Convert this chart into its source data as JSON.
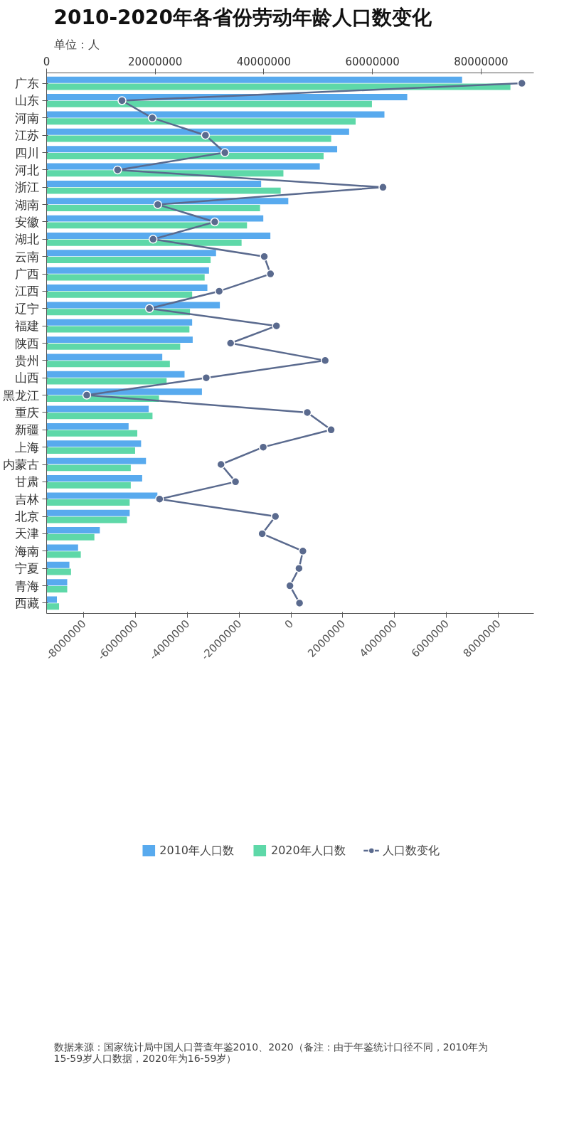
{
  "chart_data": {
    "type": "bar",
    "orientation": "horizontal",
    "title": "2010-2020年各省份劳动年龄人口数变化",
    "subtitle": "单位：人",
    "categories": [
      "广东",
      "山东",
      "河南",
      "江苏",
      "四川",
      "河北",
      "浙江",
      "湖南",
      "安徽",
      "湖北",
      "云南",
      "广西",
      "江西",
      "辽宁",
      "福建",
      "陕西",
      "贵州",
      "山西",
      "黑龙江",
      "重庆",
      "新疆",
      "上海",
      "内蒙古",
      "甘肃",
      "吉林",
      "北京",
      "天津",
      "海南",
      "宁夏",
      "青海",
      "西藏"
    ],
    "series": [
      {
        "name": "2010年人口数",
        "color": "#58aaee",
        "values": [
          76500000,
          66400000,
          62200000,
          55700000,
          53500000,
          50300000,
          39500000,
          44500000,
          39900000,
          41200000,
          31200000,
          29900000,
          29600000,
          31900000,
          26800000,
          26900000,
          21300000,
          25400000,
          28600000,
          18800000,
          15100000,
          17400000,
          18300000,
          17600000,
          20400000,
          15300000,
          9800000,
          5800000,
          4200000,
          3800000,
          1900000
        ]
      },
      {
        "name": "2020年人口数",
        "color": "#5ed8a8",
        "values": [
          85400000,
          59900000,
          56900000,
          52400000,
          51000000,
          43600000,
          43100000,
          39300000,
          36900000,
          35900000,
          30200000,
          29100000,
          26800000,
          26400000,
          26300000,
          24600000,
          22700000,
          22100000,
          20700000,
          19500000,
          16700000,
          16300000,
          15500000,
          15500000,
          15300000,
          14800000,
          8800000,
          6300000,
          4500000,
          3800000,
          2300000
        ]
      },
      {
        "name": "人口数变化",
        "type": "line",
        "axis": "x2",
        "color": "#5a6a8e",
        "marker": "circle",
        "values": [
          8910000,
          -6520000,
          -5350000,
          -3300000,
          -2550000,
          -6690000,
          3550000,
          -5140000,
          -2940000,
          -5320000,
          -1030000,
          -790000,
          -2770000,
          -5460000,
          -560000,
          -2330000,
          1320000,
          -3270000,
          -7880000,
          630000,
          1550000,
          -1070000,
          -2700000,
          -2140000,
          -5070000,
          -600000,
          -1110000,
          460000,
          310000,
          -40000,
          330000
        ]
      }
    ],
    "xlim": [
      0,
      89700000
    ],
    "xticks": [
      0,
      20000000,
      40000000,
      60000000,
      80000000
    ],
    "x2lim": [
      -9430000,
      9370000
    ],
    "x2ticks": [
      -8000000,
      -6000000,
      -4000000,
      -2000000,
      0,
      2000000,
      4000000,
      6000000,
      8000000
    ],
    "grid": false,
    "legend": "bottom",
    "annotations": [
      "数据来源：国家统计局中国人口普查年鉴2010、2020（备注：由于年鉴统计口径不同，2010年为15-59岁人口数据，2020年为16-59岁）"
    ]
  }
}
